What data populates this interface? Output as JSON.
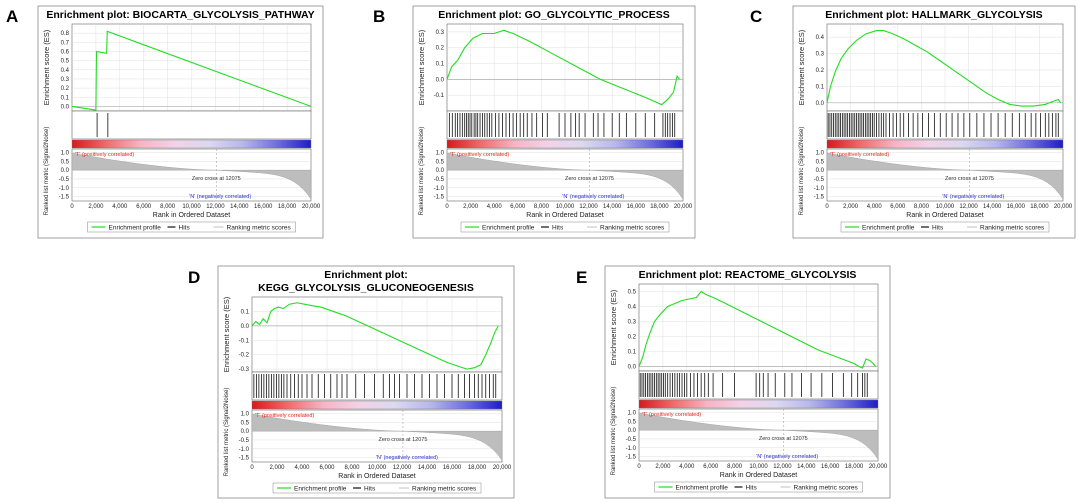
{
  "chart_data": [
    {
      "type": "line",
      "panel_label": "A",
      "title_lines": [
        "Enrichment plot: BIOCARTA_GLYCOLYSIS_PATHWAY"
      ],
      "ylabel": "Enrichment score (ES)",
      "ylabel_bottom": "Ranked list metric (Signal2Noise)",
      "xlabel": "Rank in Ordered Dataset",
      "xlim": [
        0,
        20000
      ],
      "x_ticks": [
        "0",
        "2,000",
        "4,000",
        "6,000",
        "8,000",
        "10,000",
        "12,000",
        "14,000",
        "16,000",
        "18,000",
        "20,000"
      ],
      "ylim": [
        -0.05,
        0.9
      ],
      "y_ticks": [
        "0.8",
        "0.7",
        "0.6",
        "0.5",
        "0.4",
        "0.3",
        "0.2",
        "0.1",
        "0.0"
      ],
      "y_tick_values": [
        0.8,
        0.7,
        0.6,
        0.5,
        0.4,
        0.3,
        0.2,
        0.1,
        0.0
      ],
      "es_profile": {
        "x": [
          0,
          2000,
          2050,
          2900,
          2950,
          20000
        ],
        "y": [
          0.0,
          -0.04,
          0.6,
          0.58,
          0.82,
          0.0
        ]
      },
      "hits": [
        2100,
        3000
      ],
      "metric_ylim": [
        -1.75,
        1.2
      ],
      "metric_ticks": [
        "1.0",
        "0.5",
        "0.0",
        "-0.5",
        "-1.0",
        "-1.5"
      ],
      "metric_tick_values": [
        1.0,
        0.5,
        0.0,
        -0.5,
        -1.0,
        -1.5
      ],
      "zero_cross_label": "Zero cross at 12075",
      "zero_cross": 12075,
      "positive_label": "'T' (positively correlated)",
      "negative_label": "'N' (negatively correlated)",
      "legend": [
        "Enrichment profile",
        "Hits",
        "Ranking metric scores"
      ]
    },
    {
      "type": "line",
      "panel_label": "B",
      "title_lines": [
        "Enrichment plot: GO_GLYCOLYTIC_PROCESS"
      ],
      "ylabel": "Enrichment score (ES)",
      "ylabel_bottom": "Ranked list metric (Signal2Noise)",
      "xlabel": "Rank in Ordered Dataset",
      "xlim": [
        0,
        20000
      ],
      "x_ticks": [
        "0",
        "2,000",
        "4,000",
        "6,000",
        "8,000",
        "10,000",
        "12,000",
        "14,000",
        "16,000",
        "18,000",
        "20,000"
      ],
      "ylim": [
        -0.2,
        0.35
      ],
      "y_ticks": [
        "0.3",
        "0.2",
        "0.1",
        "0.0",
        "-0.1"
      ],
      "y_tick_values": [
        0.3,
        0.2,
        0.1,
        0.0,
        -0.1
      ],
      "es_profile": {
        "x": [
          0,
          400,
          900,
          1500,
          2200,
          3000,
          4000,
          4800,
          5600,
          7000,
          9000,
          11000,
          13000,
          15000,
          17000,
          18200,
          18800,
          19200,
          19500,
          19700
        ],
        "y": [
          0.0,
          0.08,
          0.12,
          0.2,
          0.26,
          0.29,
          0.29,
          0.31,
          0.29,
          0.24,
          0.16,
          0.08,
          0.0,
          -0.06,
          -0.12,
          -0.16,
          -0.12,
          -0.08,
          0.02,
          0.0
        ]
      },
      "hits": [
        200,
        450,
        700,
        900,
        1100,
        1300,
        1500,
        1650,
        1800,
        1950,
        2100,
        2300,
        2450,
        2600,
        2800,
        3000,
        3200,
        3400,
        3600,
        3800,
        4100,
        4400,
        4700,
        5000,
        5300,
        5600,
        5900,
        6200,
        6500,
        6800,
        7200,
        7600,
        8100,
        8500,
        9500,
        10000,
        10500,
        10900,
        11200,
        11700,
        12400,
        12800,
        13300,
        14000,
        14600,
        15200,
        16000,
        16800,
        17600,
        18300,
        18500,
        18700,
        18900,
        19100,
        19300
      ],
      "metric_ylim": [
        -1.75,
        1.2
      ],
      "metric_ticks": [
        "1.0",
        "0.5",
        "0.0",
        "-0.5",
        "-1.0",
        "-1.5"
      ],
      "metric_tick_values": [
        1.0,
        0.5,
        0.0,
        -0.5,
        -1.0,
        -1.5
      ],
      "zero_cross_label": "Zero cross at 12075",
      "zero_cross": 12075,
      "positive_label": "'T' (positively correlated)",
      "negative_label": "'N' (negatively correlated)",
      "legend": [
        "Enrichment profile",
        "Hits",
        "Ranking metric scores"
      ]
    },
    {
      "type": "line",
      "panel_label": "C",
      "title_lines": [
        "Enrichment plot: HALLMARK_GLYCOLYSIS"
      ],
      "ylabel": "Enrichment score (ES)",
      "ylabel_bottom": "Ranked list metric (Signal2Noise)",
      "xlabel": "Rank in Ordered Dataset",
      "xlim": [
        0,
        20000
      ],
      "x_ticks": [
        "0",
        "2,000",
        "4,000",
        "6,000",
        "8,000",
        "10,000",
        "12,000",
        "14,000",
        "16,000",
        "18,000",
        "20,000"
      ],
      "ylim": [
        -0.05,
        0.48
      ],
      "y_ticks": [
        "0.4",
        "0.3",
        "0.2",
        "0.1",
        "0.0"
      ],
      "y_tick_values": [
        0.4,
        0.3,
        0.2,
        0.1,
        0.0
      ],
      "es_profile": {
        "x": [
          0,
          300,
          700,
          1200,
          1800,
          2500,
          3300,
          4200,
          4800,
          5600,
          6500,
          7500,
          8500,
          9500,
          10500,
          11500,
          12500,
          13500,
          14500,
          15500,
          16500,
          17500,
          18500,
          19200,
          19600,
          19800
        ],
        "y": [
          0.0,
          0.1,
          0.19,
          0.27,
          0.33,
          0.38,
          0.42,
          0.44,
          0.44,
          0.42,
          0.39,
          0.35,
          0.31,
          0.26,
          0.21,
          0.16,
          0.11,
          0.06,
          0.02,
          -0.01,
          -0.02,
          -0.02,
          -0.01,
          0.01,
          0.02,
          0.0
        ]
      },
      "hits": [
        100,
        250,
        400,
        550,
        700,
        850,
        1000,
        1150,
        1300,
        1450,
        1600,
        1750,
        1900,
        2050,
        2200,
        2350,
        2500,
        2650,
        2800,
        2950,
        3100,
        3250,
        3400,
        3550,
        3700,
        3850,
        4000,
        4200,
        4400,
        4600,
        4800,
        5000,
        5300,
        5600,
        5900,
        6200,
        6500,
        6900,
        7300,
        7700,
        8100,
        8600,
        9100,
        9600,
        10100,
        10600,
        11100,
        11600,
        12100,
        12700,
        13300,
        13900,
        14500,
        15100,
        15700,
        16300,
        16800,
        17300,
        17700,
        18100,
        18500,
        18800,
        19100,
        19400,
        19600
      ],
      "metric_ylim": [
        -1.75,
        1.2
      ],
      "metric_ticks": [
        "1.0",
        "0.5",
        "0.0",
        "-0.5",
        "-1.0",
        "-1.5"
      ],
      "metric_tick_values": [
        1.0,
        0.5,
        0.0,
        -0.5,
        -1.0,
        -1.5
      ],
      "zero_cross_label": "Zero cross at 12075",
      "zero_cross": 12075,
      "positive_label": "'T' (positively correlated)",
      "negative_label": "'N' (negatively correlated)",
      "legend": [
        "Enrichment profile",
        "Hits",
        "Ranking metric scores"
      ]
    },
    {
      "type": "line",
      "panel_label": "D",
      "title_lines": [
        "Enrichment plot:",
        "KEGG_GLYCOLYSIS_GLUCONEOGENESIS"
      ],
      "ylabel": "Enrichment score (ES)",
      "ylabel_bottom": "Ranked list metric (Signal2Noise)",
      "xlabel": "Rank in Ordered Dataset",
      "xlim": [
        0,
        20000
      ],
      "x_ticks": [
        "0",
        "2,000",
        "4,000",
        "6,000",
        "8,000",
        "10,000",
        "12,000",
        "14,000",
        "16,000",
        "18,000",
        "20,000"
      ],
      "ylim": [
        -0.32,
        0.2
      ],
      "y_ticks": [
        "0.1",
        "0.0",
        "-0.1",
        "-0.2",
        "-0.3"
      ],
      "y_tick_values": [
        0.1,
        0.0,
        -0.1,
        -0.2,
        -0.3
      ],
      "es_profile": {
        "x": [
          0,
          300,
          600,
          900,
          1200,
          1500,
          1800,
          2100,
          2500,
          3000,
          3600,
          4200,
          4800,
          5500,
          6500,
          7500,
          8500,
          9500,
          10500,
          11500,
          12500,
          13500,
          14500,
          15500,
          16500,
          17200,
          17800,
          18300,
          18700,
          19100,
          19400,
          19700
        ],
        "y": [
          0.0,
          0.03,
          0.01,
          0.05,
          0.02,
          0.1,
          0.12,
          0.13,
          0.12,
          0.15,
          0.16,
          0.15,
          0.14,
          0.13,
          0.1,
          0.07,
          0.03,
          -0.01,
          -0.05,
          -0.09,
          -0.13,
          -0.17,
          -0.21,
          -0.25,
          -0.28,
          -0.3,
          -0.29,
          -0.27,
          -0.2,
          -0.12,
          -0.05,
          0.0
        ]
      },
      "hits": [
        150,
        350,
        550,
        750,
        950,
        1150,
        1350,
        1550,
        1750,
        1950,
        2150,
        2350,
        2550,
        2800,
        3100,
        3400,
        3700,
        4000,
        4400,
        4800,
        5300,
        5800,
        6300,
        6800,
        7200,
        7600,
        8300,
        9000,
        9800,
        10500,
        11000,
        11400,
        11800,
        12400,
        13000,
        13600,
        14200,
        14800,
        15400,
        16000,
        16500,
        17000,
        17400,
        17800,
        18100,
        18400,
        18700,
        19000,
        19300,
        19500
      ],
      "metric_ylim": [
        -1.75,
        1.2
      ],
      "metric_ticks": [
        "1.0",
        "0.5",
        "0.0",
        "-0.5",
        "-1.0",
        "-1.5"
      ],
      "metric_tick_values": [
        1.0,
        0.5,
        0.0,
        -0.5,
        -1.0,
        -1.5
      ],
      "zero_cross_label": "Zero cross at 12075",
      "zero_cross": 12075,
      "positive_label": "'T' (positively correlated)",
      "negative_label": "'N' (negatively correlated)",
      "legend": [
        "Enrichment profile",
        "Hits",
        "Ranking metric scores"
      ]
    },
    {
      "type": "line",
      "panel_label": "E",
      "title_lines": [
        "Enrichment plot: REACTOME_GLYCOLYSIS"
      ],
      "ylabel": "Enrichment score (ES)",
      "ylabel_bottom": "Ranked list metric (Signal2Noise)",
      "xlabel": "Rank in Ordered Dataset",
      "xlim": [
        0,
        20000
      ],
      "x_ticks": [
        "0",
        "2,000",
        "4,000",
        "6,000",
        "8,000",
        "10,000",
        "12,000",
        "14,000",
        "16,000",
        "18,000",
        "20,000"
      ],
      "ylim": [
        -0.03,
        0.55
      ],
      "y_ticks": [
        "0.5",
        "0.4",
        "0.3",
        "0.2",
        "0.1",
        "0.0"
      ],
      "y_tick_values": [
        0.5,
        0.4,
        0.3,
        0.2,
        0.1,
        0.0
      ],
      "es_profile": {
        "x": [
          0,
          300,
          600,
          900,
          1300,
          1800,
          2400,
          3000,
          3600,
          4200,
          4800,
          5200,
          5600,
          6200,
          7000,
          8000,
          9000,
          10000,
          11000,
          12000,
          13000,
          14000,
          15000,
          16000,
          17000,
          18000,
          18400,
          18700,
          19000,
          19300,
          19600,
          19800
        ],
        "y": [
          0.0,
          0.06,
          0.15,
          0.22,
          0.3,
          0.35,
          0.4,
          0.42,
          0.44,
          0.45,
          0.46,
          0.5,
          0.48,
          0.46,
          0.43,
          0.39,
          0.35,
          0.31,
          0.27,
          0.23,
          0.19,
          0.15,
          0.11,
          0.08,
          0.05,
          0.02,
          0.0,
          -0.01,
          0.05,
          0.04,
          0.02,
          0.0
        ]
      },
      "hits": [
        100,
        250,
        400,
        550,
        700,
        850,
        1000,
        1150,
        1300,
        1450,
        1600,
        1750,
        1900,
        2050,
        2200,
        2400,
        2600,
        2800,
        3000,
        3200,
        3400,
        3600,
        3800,
        4000,
        4300,
        4600,
        4900,
        5200,
        5500,
        5800,
        6200,
        7000,
        8000,
        9800,
        10100,
        10400,
        10800,
        11400,
        12200,
        12800,
        13600,
        14400,
        15300,
        16200,
        17100,
        17800,
        18300,
        18700,
        18900,
        19100
      ],
      "metric_ylim": [
        -1.75,
        1.2
      ],
      "metric_ticks": [
        "1.0",
        "0.5",
        "0.0",
        "-0.5",
        "-1.0",
        "-1.5"
      ],
      "metric_tick_values": [
        1.0,
        0.5,
        0.0,
        -0.5,
        -1.0,
        -1.5
      ],
      "zero_cross_label": "Zero cross at 12075",
      "zero_cross": 12075,
      "positive_label": "'T' (positively correlated)",
      "negative_label": "'N' (negatively correlated)",
      "legend": [
        "Enrichment profile",
        "Hits",
        "Ranking metric scores"
      ]
    }
  ],
  "colors": {
    "es_line": "#22dd22",
    "hits": "#111111",
    "metric_fill": "#bdbdbd",
    "grid": "#d8d8d8",
    "zero_line": "#aaaaaa",
    "heat_gradient": [
      "#d7191c",
      "#f06a6a",
      "#f6b4c4",
      "#f3d2e8",
      "#dcd8f0",
      "#b7b7ec",
      "#6e6ee0",
      "#1c1cc8"
    ]
  }
}
